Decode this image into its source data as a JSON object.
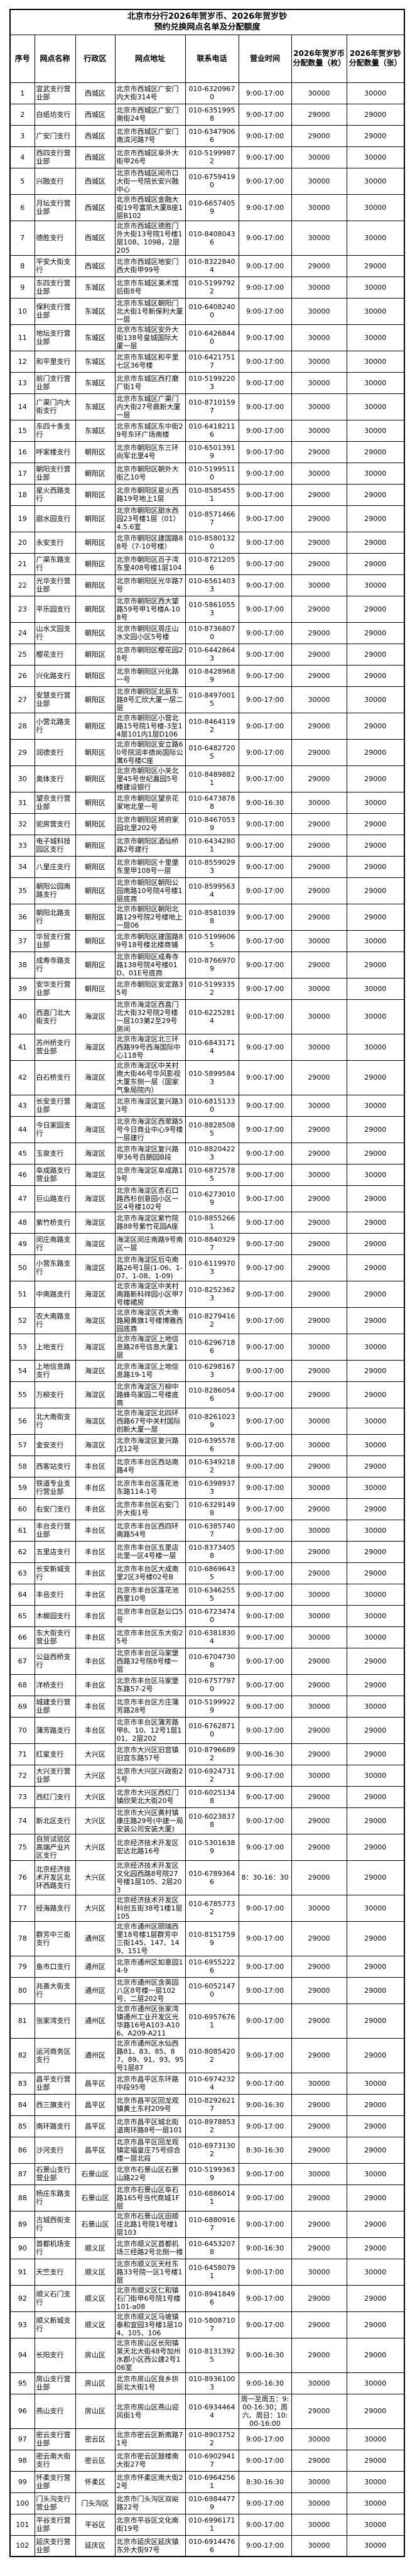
{
  "table": {
    "title_line1": "北京市分行2026年贺岁币、2026年贺岁钞",
    "title_line2": "预约兑换网点名单及分配额度",
    "columns": [
      "序号",
      "网点名称",
      "行政区",
      "网点地址",
      "联系电话",
      "营业时间",
      "2026年贺岁币分配数量（枚）",
      "2026年贺岁钞分配数量（张）"
    ],
    "rows": [
      [
        "1",
        "宣武支行营业部",
        "西城区",
        "北京市西城区广安门内大街314号",
        "010-63209670",
        "9:00-17:00",
        "30000",
        "30000"
      ],
      [
        "2",
        "白纸坊支行",
        "西城区",
        "北京市西城区广安门南街24号",
        "010-63519958",
        "9:00-17:00",
        "29000",
        "29000"
      ],
      [
        "3",
        "广安门支行",
        "西城区",
        "北京市西城区广安门南滨河路7号",
        "010-63479066",
        "9:00-17:00",
        "29000",
        "29000"
      ],
      [
        "4",
        "西四支行营业部",
        "西城区",
        "北京市西城区阜外大街甲26号",
        "010-51999872",
        "9:00-17:00",
        "30000",
        "30000"
      ],
      [
        "5",
        "兴融支行",
        "西城区",
        "北京市西城区闹市口大街一号院长安兴融中心",
        "010-67594190",
        "9:00-17:00",
        "30000",
        "30000"
      ],
      [
        "6",
        "月坛支行营业部",
        "西城区",
        "北京市西城区金融大街19号富凯大厦B座1层B102",
        "010-66574059",
        "9:00-17:00",
        "30000",
        "30000"
      ],
      [
        "7",
        "德胜支行",
        "西城区",
        "北京市西城区德胜门外大街13号院1号楼1层108、109B，2层205",
        "010-84080436",
        "9:00-17:00",
        "30000",
        "30000"
      ],
      [
        "8",
        "平安大街支行",
        "西城区",
        "北京市西城区地安门西大街甲99号",
        "010-83228404",
        "9:00-17:00",
        "29000",
        "29000"
      ],
      [
        "9",
        "东四支行营业部",
        "东城区",
        "北京市东城区美术馆后街8号",
        "010-51997922",
        "9:00-17:00",
        "30000",
        "30000"
      ],
      [
        "10",
        "保利支行营业部",
        "东城区",
        "北京市东城区朝阳门北大街1号新保利大厦一层",
        "010-64082400",
        "9:00-17:00",
        "30000",
        "30000"
      ],
      [
        "11",
        "地坛支行营业部",
        "东城区",
        "北京市东城区安外大街138号皇城国际大厦一层",
        "010-64268440",
        "9:00-17:00",
        "30000",
        "30000"
      ],
      [
        "12",
        "和平里支行",
        "东城区",
        "北京市东城区和平里七区36号楼",
        "010-64217517",
        "9:00-17:00",
        "30000",
        "30000"
      ],
      [
        "13",
        "前门支行营业部",
        "东城区",
        "北京市东城区西打磨厂街1号",
        "010-51992203",
        "9:00-17:00",
        "30000",
        "30000"
      ],
      [
        "14",
        "广渠门内大街支行",
        "东城区",
        "北京市东城区广渠门内大街27号鼎新大厦一层",
        "010-87101597",
        "9:00-17:00",
        "30000",
        "30000"
      ],
      [
        "15",
        "东四十条支行",
        "东城区",
        "北京市东城区东中街29号东环广场南楼",
        "010-64182116",
        "9:00-17:00",
        "30000",
        "30000"
      ],
      [
        "16",
        "呼家楼支行",
        "朝阳区",
        "北京市朝阳区东三环向军北里4号",
        "010-65013919",
        "9:00-17:00",
        "29000",
        "29000"
      ],
      [
        "17",
        "朝阳支行营业部",
        "朝阳区",
        "北京市朝阳区朝外大街乙10号",
        "010-51995110",
        "9:00-17:00",
        "30000",
        "30000"
      ],
      [
        "18",
        "星火西路支行",
        "朝阳区",
        "北京市朝阳区星火西路19号地上1层",
        "010-85854551",
        "9:00-17:00",
        "29000",
        "29000"
      ],
      [
        "19",
        "甜水园支行",
        "朝阳区",
        "北京市朝阳区甜水西园23号楼1层（01）4.5.6室",
        "010-85714667",
        "9:00-17:00",
        "29000",
        "29000"
      ],
      [
        "20",
        "永安支行",
        "朝阳区",
        "北京市朝阳区建国路88号（7-10号楼）",
        "010-85801320",
        "9:00-17:00",
        "29000",
        "29000"
      ],
      [
        "21",
        "广渠东路支行",
        "朝阳区",
        "北京市朝阳区百子湾东里408号楼1层104",
        "010-87212056",
        "9:00-17:00",
        "29000",
        "29000"
      ],
      [
        "22",
        "光华支行营业部",
        "朝阳区",
        "北京市朝阳区光华路7号",
        "010-65614033",
        "9:00-17:00",
        "30000",
        "30000"
      ],
      [
        "23",
        "平乐园支行",
        "朝阳区",
        "北京市朝阳区西大望路59号甲1号楼A-108号",
        "010-58610553",
        "9:00-17:00",
        "29000",
        "29000"
      ],
      [
        "24",
        "山水文园支行",
        "朝阳区",
        "北京市朝阳区周庄山水文园小区5号楼",
        "010-87368070",
        "9:00-17:00",
        "29000",
        "29000"
      ],
      [
        "25",
        "樱花支行",
        "朝阳区",
        "北京市朝阳区樱花园28号",
        "010-64428643",
        "9:00-17:00",
        "29000",
        "29000"
      ],
      [
        "26",
        "兴化路支行",
        "朝阳区",
        "北京市朝阳区兴化路一号",
        "010-84289689",
        "9:00-17:00",
        "29000",
        "29000"
      ],
      [
        "27",
        "安慧支行营业部",
        "朝阳区",
        "北京市朝阳区北辰东路8号汇欣大厦一层二层",
        "010-84970015",
        "9:00-17:00",
        "30000",
        "30000"
      ],
      [
        "28",
        "小营北路支行",
        "朝阳区",
        "北京市朝阳区小营北路15号院1号楼-3至14层101内1层D106",
        "010-84641192",
        "9:00-17:00",
        "29000",
        "29000"
      ],
      [
        "29",
        "润德支行",
        "朝阳区",
        "北京市朝阳区安立路60号院润丰德尚国际公寓6号楼C座",
        "010-64827205",
        "9:00-17:00",
        "29000",
        "29000"
      ],
      [
        "30",
        "奥体支行",
        "朝阳区",
        "北京市朝阳区小关北里45号世纪嘉园5号楼建设银行",
        "010-84898821",
        "9:00-17:00",
        "29000",
        "29000"
      ],
      [
        "31",
        "望京支行营业部",
        "朝阳区",
        "北京市朝阳区望京花家地北里一号",
        "010-64738788",
        "9:00-16:30",
        "30000",
        "30000"
      ],
      [
        "32",
        "驼房营支行",
        "朝阳区",
        "北京市朝阳区将府家园北里202号",
        "010-84670539",
        "9:00-17:00",
        "29000",
        "29000"
      ],
      [
        "33",
        "电子城科技园区支行",
        "朝阳区",
        "北京市朝阳区酒仙桥路2号建行",
        "010-64342801",
        "9:00-17:00",
        "29000",
        "29000"
      ],
      [
        "34",
        "八里庄支行",
        "朝阳区",
        "北京市朝阳区十里堡东里甲108号一层",
        "010-85590293",
        "9:00-17:00",
        "29000",
        "29000"
      ],
      [
        "35",
        "朝阳公园南路支行",
        "朝阳区",
        "北京市朝阳区朝阳公园南路10号院4号楼1层底商",
        "010-85995634",
        "9:00-17:00",
        "29000",
        "29000"
      ],
      [
        "36",
        "朝阳北路支行",
        "朝阳区",
        "北京市朝阳区朝阳北路129号院2号楼地上一层06",
        "010-85810398",
        "9:00-17:00",
        "29000",
        "29000"
      ],
      [
        "37",
        "华贸支行营业部",
        "朝阳区",
        "北京市朝阳区建国路89号18号楼北楼商铺",
        "010-51996065",
        "9:00-17:00",
        "30000",
        "30000"
      ],
      [
        "38",
        "成寿寺路支行",
        "朝阳区",
        "北京市朝阳区成寿寺路138号院4号楼01D、01E号底商",
        "010-87669709",
        "9:00-17:00",
        "29000",
        "29000"
      ],
      [
        "39",
        "安华支行营业部",
        "朝阳区",
        "北京市朝阳区安定路35号",
        "010-51993352",
        "9:00-17:00",
        "30000",
        "30000"
      ],
      [
        "40",
        "西直门北大街支行",
        "海淀区",
        "北京市海淀区西直门北大街32号院2号楼一层103第2至29号房间",
        "010-62252814",
        "9:00-17:00",
        "30000",
        "30000"
      ],
      [
        "41",
        "苏州桥支行营业部",
        "海淀区",
        "北京市海淀区北三环西路99号西海国际中心118号",
        "010-68431714",
        "9:00-17:00",
        "30000",
        "30000"
      ],
      [
        "42",
        "白石桥支行",
        "海淀区",
        "北京市海淀区中关村南大街46号华风影视大厦东侧一层（国家气象局院内）",
        "010-58995843",
        "9:00-17:00",
        "29000",
        "29000"
      ],
      [
        "43",
        "长安支行营业部",
        "海淀区",
        "北京市海淀区复兴路33号",
        "010-68151330",
        "9:00-17:00",
        "30000",
        "30000"
      ],
      [
        "44",
        "今日家园支行",
        "海淀区",
        "北京市海淀区西翠路5号今日商业中心9号楼一层建行",
        "010-88285085",
        "9:00-17:00",
        "29000",
        "29000"
      ],
      [
        "45",
        "玉泉支行",
        "海淀区",
        "北京市海淀区复兴路甲36号百朗园B段",
        "010-88204223",
        "9:00-17:00",
        "29000",
        "29000"
      ],
      [
        "46",
        "阜成路支行营业部",
        "海淀区",
        "北京市海淀区阜成路19号",
        "010-68725785",
        "9:00-17:00",
        "30000",
        "30000"
      ],
      [
        "47",
        "巨山路支行",
        "海淀区",
        "北京市海淀区杏石口路西杉创意园小区一区4号楼102号",
        "010-62730109",
        "9:00-17:00",
        "29000",
        "29000"
      ],
      [
        "48",
        "紫竹桥支行",
        "海淀区",
        "北京市海淀区紫竹院路88号紫竹花园A座",
        "010-88552661",
        "9:00-17:00",
        "29000",
        "29000"
      ],
      [
        "49",
        "闵庄南路支行",
        "海淀区",
        "海淀区闵庄南路9号南区一层",
        "010-88403297",
        "9:00-17:00",
        "29000",
        "29000"
      ],
      [
        "50",
        "小营东路支行",
        "海淀区",
        "北京市海淀区后屯南路26号1层(1-06、1-07、1-08、1-09)",
        "010-61199703",
        "9:00-17:00",
        "29000",
        "29000"
      ],
      [
        "51",
        "中南路支行",
        "海淀区",
        "北京市海淀区中关村南路新科祥园小区甲7号楼裙房",
        "010-82523623",
        "9:00-17:00",
        "29000",
        "29000"
      ],
      [
        "52",
        "农大南路支行",
        "海淀区",
        "北京市海淀区农大南路厢黄旗1号楼博雅西园底商",
        "010-82794162",
        "9:00-17:00",
        "29000",
        "29000"
      ],
      [
        "53",
        "上地支行",
        "海淀区",
        "北京市海淀区上地信息路28号信息大厦1层",
        "010-62967186",
        "9:00-17:00",
        "30000",
        "30000"
      ],
      [
        "54",
        "上地信息路支行",
        "海淀区",
        "北京市海淀区上地信息路19-1号",
        "010-62981673",
        "9:00-17:00",
        "29000",
        "29000"
      ],
      [
        "55",
        "万柳支行",
        "海淀区",
        "北京市海淀区万柳中路蜂鸟家园二号楼底商",
        "010-82860546",
        "9:00-17:00",
        "29000",
        "29000"
      ],
      [
        "56",
        "北大南街支行",
        "海淀区",
        "北京市海淀区北四环西路67号中关村国际创新大厦一层",
        "010-82610239",
        "9:00-17:00",
        "30000",
        "30000"
      ],
      [
        "57",
        "金安支行",
        "海淀区",
        "北京市海淀区复兴路戊12号",
        "010-63955786",
        "9:00-17:00",
        "30000",
        "30000"
      ],
      [
        "58",
        "西客站支行",
        "丰台区",
        "北京市丰台区西站南路4号",
        "010-63492182",
        "9:00-17:00",
        "29000",
        "29000"
      ],
      [
        "59",
        "铁道专业支行营业部",
        "丰台区",
        "北京市丰台区莲花池东路114-1号",
        "010-63989373",
        "9:00-17:00",
        "30000",
        "30000"
      ],
      [
        "60",
        "右安门支行",
        "丰台区",
        "北京市丰台区右安门外大街1号",
        "010-63291498",
        "9:00-17:00",
        "29000",
        "29000"
      ],
      [
        "61",
        "丰台支行营业部",
        "丰台区",
        "北京市丰台区西四环南路54号",
        "010-63857407",
        "9:00-17:00",
        "30000",
        "30000"
      ],
      [
        "62",
        "五里店支行",
        "丰台区",
        "北京市丰台区五里店北里一区4号楼一层",
        "010-83734058",
        "9:00-17:00",
        "29000",
        "29000"
      ],
      [
        "63",
        "长安新城支行",
        "丰台区",
        "北京市丰台区大成南里2区3号楼02号B",
        "010-68696435",
        "9:00-17:00",
        "29000",
        "29000"
      ],
      [
        "64",
        "丰岳支行",
        "丰台区",
        "北京市丰台区莲花池西里10号",
        "010-63462555",
        "9:00-17:00",
        "30000",
        "30000"
      ],
      [
        "65",
        "木樨园支行",
        "丰台区",
        "北京市丰台区赵公口5号",
        "010-67234740",
        "9:00-17:00",
        "30000",
        "30000"
      ],
      [
        "66",
        "东大街支行营业部",
        "丰台区",
        "北京市丰台区东大街25号",
        "010-63818304",
        "9:00-17:00",
        "30000",
        "30000"
      ],
      [
        "67",
        "公益西桥支行",
        "丰台区",
        "北京市丰台区马家堡西路32号院8号楼一层",
        "010-67047308",
        "9:00-17:00",
        "29000",
        "29000"
      ],
      [
        "68",
        "洋桥支行",
        "丰台区",
        "北京市丰台区马家堡东路57-2号",
        "010-67577970",
        "9:00-17:00",
        "29000",
        "29000"
      ],
      [
        "69",
        "城建支行营业部",
        "丰台区",
        "北京市丰台区方庄蒲芳路28号",
        "010-51999229",
        "9:00-17:00",
        "30000",
        "30000"
      ],
      [
        "70",
        "蒲芳路支行",
        "丰台区",
        "北京市丰台区蒲芳路甲8、10、12号1层101、2层202",
        "010-67628710",
        "9:00-17:00",
        "29000",
        "29000"
      ],
      [
        "71",
        "红星支行",
        "大兴区",
        "北京市大兴区旧宫镇旧宫东路57号",
        "010-87966892",
        "9:00-16:30",
        "29000",
        "29000"
      ],
      [
        "72",
        "大兴支行营业部",
        "大兴区",
        "北京市大兴区兴政街25号",
        "010-69247312",
        "9:00-17:00",
        "30000",
        "30000"
      ],
      [
        "73",
        "西红门支行",
        "大兴区",
        "北京市大兴区西红门镇欣荣北大街20号",
        "010-60251348",
        "9:00-17:00",
        "29000",
        "29000"
      ],
      [
        "74",
        "新北区支行",
        "大兴区",
        "北京市大兴区黄村镇康庄路29号(中建一局安装公司安装大厦)",
        "010-60238378",
        "9:00-17:00",
        "29000",
        "29000"
      ],
      [
        "75",
        "自贸试验区高端产业片区支行",
        "大兴区",
        "北京经济技术开发区宏达北路16号",
        "010-53016389",
        "9:00-17:00",
        "29000",
        "29000"
      ],
      [
        "76",
        "北京经济技术开发区北环西路支行",
        "大兴区",
        "北京经济技术开发区文化园西路8号院27号楼1层105、2层203",
        "010-67893646",
        "8：30-16：30",
        "29000",
        "29000"
      ],
      [
        "77",
        "经海路支行",
        "大兴区",
        "北京经济技术开发区科创五街38号1楼1层105",
        "010-67857732",
        "9:00-17:00",
        "30000",
        "30000"
      ],
      [
        "78",
        "群芳中三街支行",
        "通州区",
        "北京市通州区颐瑞西里18号楼1层群芳中三街145、147、149、151号",
        "010-81517599",
        "9:00-17:00",
        "29000",
        "29000"
      ],
      [
        "79",
        "鱼市口支行",
        "通州区",
        "北京市通州区如意园14-9",
        "010-69552226",
        "9:00-17:00",
        "29000",
        "29000"
      ],
      [
        "80",
        "兆善大街支行",
        "通州区",
        "北京市通州区含英园八区8号楼一层102号、二层202号",
        "010-60521470",
        "9:00-17:00",
        "29000",
        "29000"
      ],
      [
        "81",
        "张家湾支行",
        "通州区",
        "北京市通州区张家湾镇通州工业开发区光华路16号A103-A106、A209-A211",
        "010-69576761",
        "9:00-17:00",
        "29000",
        "29000"
      ],
      [
        "82",
        "运河商务区支行",
        "通州区",
        "北京市通州区水仙西路81、83、85、87、89、91、93、95号1层87",
        "010-80854202",
        "9:00-17:00",
        "29000",
        "29000"
      ],
      [
        "83",
        "昌平支行营业部",
        "昌平区",
        "北京市昌平区东环路中段95号",
        "010-69742324",
        "9:00-17:00",
        "30000",
        "30000"
      ],
      [
        "84",
        "西三旗支行",
        "昌平区",
        "北京市昌平区回龙观镇黄土东村209号",
        "010-82926217",
        "9:00-16:30",
        "29000",
        "29000"
      ],
      [
        "85",
        "南环路支行",
        "昌平区",
        "北京市昌平区城北街道南环路8号一层101",
        "010-89788532",
        "9:00-17:00",
        "29000",
        "29000"
      ],
      [
        "86",
        "沙河支行",
        "昌平区",
        "北京市昌平区回龙观镇定福皇庄75号综合楼一层北段",
        "010-69731302",
        "8:30-16:30",
        "29000",
        "29000"
      ],
      [
        "87",
        "石景山支行营业部",
        "石景山区",
        "北京市石景山区石景山路22号",
        "010-51993639",
        "9:00-17:00",
        "30000",
        "30000"
      ],
      [
        "88",
        "杨庄东路支行",
        "石景山区",
        "北京市石景山区阜石路165号当代商城1F层",
        "010-68860141",
        "9:00-17:00",
        "29000",
        "29000"
      ],
      [
        "89",
        "古城西街支行",
        "石景山区",
        "北京市石景山区田顺庄北路1号院1号楼1层103",
        "010-68809167",
        "9:00-17:00",
        "29000",
        "29000"
      ],
      [
        "90",
        "首都机场支行",
        "顺义区",
        "北京市顺义区首都机场三经路2号北侧一楼",
        "010-64532078",
        "9:00-16:30",
        "29000",
        "29000"
      ],
      [
        "91",
        "天竺支行",
        "顺义区",
        "北京市顺义区天柱东路33号院一区1号楼1层",
        "010-64580791",
        "9:00-17:00",
        "30000",
        "30000"
      ],
      [
        "92",
        "顺义石门支行",
        "顺义区",
        "北京市顺义区仁和镇石门街甲6号院1号楼101-a08",
        "010-89418496",
        "9:00-17:00",
        "29000",
        "29000"
      ],
      [
        "93",
        "顺义新城支行",
        "顺义区",
        "北京市顺义区马坡镇泰和宜园3号楼1层104、105、106",
        "010-58087107",
        "9:00-17:00",
        "29000",
        "29000"
      ],
      [
        "94",
        "长阳支行",
        "房山区",
        "北京市房山区长阳镇昊天北大街48号加州水郡小区西公建2号106室",
        "010-81313925",
        "9:00-16:30",
        "29000",
        "29000"
      ],
      [
        "95",
        "房山支行营业部",
        "房山区",
        "北京市房山区良乡拱辰北大街1号",
        "010-89361003",
        "9:00-16:30",
        "30000",
        "30000"
      ],
      [
        "96",
        "燕山支行",
        "房山区",
        "北京市房山区燕山迎风街1号",
        "010-69344644",
        "周一至周五：9:00-16:30；周六、周日：10:00-16:00",
        "29000",
        "29000"
      ],
      [
        "97",
        "密云支行营业部",
        "密云区",
        "北京市密云区新南路71号",
        "010-89037522",
        "9:00-17:00",
        "30000",
        "30000"
      ],
      [
        "98",
        "密云南大街支行",
        "密云区",
        "北京市密云区鼓楼南大街27号",
        "010-69029417",
        "9:00-17:00",
        "29000",
        "29000"
      ],
      [
        "99",
        "怀柔支行营业部",
        "怀柔区",
        "北京市怀柔区南大街22号",
        "010-69642561",
        "8:30-16:30",
        "30000",
        "30000"
      ],
      [
        "100",
        "门头沟支行营业部",
        "门头沟区",
        "北京市门头沟区双峪路22号",
        "010-69844779",
        "9:00-17:00",
        "30000",
        "30000"
      ],
      [
        "101",
        "平谷支行营业部",
        "平谷区",
        "北京市平谷区文化南街19号",
        "010-69961711",
        "9:00-17:00",
        "30000",
        "30000"
      ],
      [
        "102",
        "延庆支行营业部",
        "延庆区",
        "北京市延庆区延庆镇东外大街97号",
        "010-69144766",
        "9:00-17:00",
        "30000",
        "30000"
      ]
    ]
  }
}
